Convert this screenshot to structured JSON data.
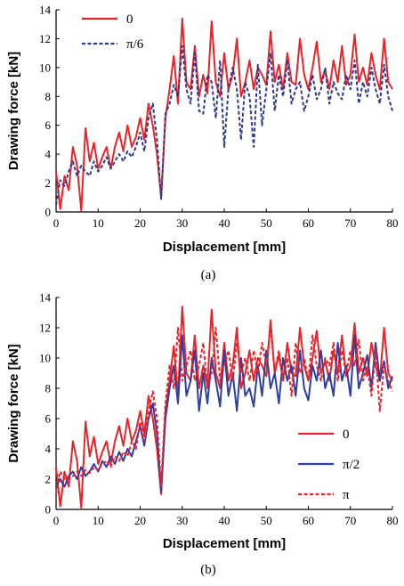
{
  "chart_data": [
    {
      "type": "line",
      "caption": "(a)",
      "xlabel": "Displacement  [mm]",
      "ylabel": "Drawing force [kN]",
      "xlim": [
        0,
        80
      ],
      "ylim": [
        0,
        14
      ],
      "xticks": [
        0,
        10,
        20,
        30,
        40,
        50,
        60,
        70,
        80
      ],
      "yticks": [
        0,
        2,
        4,
        6,
        8,
        10,
        12,
        14
      ],
      "grid": false,
      "legend_position": "top-left",
      "x": [
        0,
        1,
        2,
        3,
        4,
        5,
        6,
        7,
        8,
        9,
        10,
        11,
        12,
        13,
        14,
        15,
        16,
        17,
        18,
        19,
        20,
        21,
        22,
        23,
        24,
        25,
        26,
        27,
        28,
        29,
        30,
        31,
        32,
        33,
        34,
        35,
        36,
        37,
        38,
        39,
        40,
        41,
        42,
        43,
        44,
        45,
        46,
        47,
        48,
        49,
        50,
        51,
        52,
        53,
        54,
        55,
        56,
        57,
        58,
        59,
        60,
        61,
        62,
        63,
        64,
        65,
        66,
        67,
        68,
        69,
        70,
        71,
        72,
        73,
        74,
        75,
        76,
        77,
        78,
        79,
        80
      ],
      "series": [
        {
          "name": "0",
          "color": "#e8242b",
          "dash": "solid",
          "values": [
            2.8,
            0.2,
            2.5,
            1.5,
            4.5,
            3.2,
            0.1,
            5.8,
            3.5,
            4.8,
            3.0,
            3.8,
            4.5,
            3.0,
            4.5,
            5.5,
            4.2,
            6.0,
            4.5,
            5.2,
            6.5,
            5.0,
            7.5,
            6.0,
            4.0,
            1.0,
            6.5,
            8.5,
            10.8,
            7.5,
            13.4,
            9.0,
            8.5,
            11.5,
            8.0,
            9.5,
            8.2,
            13.2,
            9.0,
            8.0,
            11.0,
            8.5,
            9.5,
            12.0,
            8.0,
            9.0,
            10.5,
            8.5,
            10.0,
            9.5,
            8.8,
            12.5,
            9.0,
            10.2,
            8.5,
            11.0,
            9.0,
            8.8,
            12.0,
            9.5,
            8.5,
            10.0,
            11.8,
            9.0,
            9.8,
            8.5,
            10.5,
            9.0,
            11.5,
            8.8,
            9.5,
            12.3,
            9.0,
            10.0,
            8.8,
            11.0,
            9.5,
            8.5,
            12.0,
            9.0,
            8.5
          ]
        },
        {
          "name": "π/6",
          "color": "#2e3a8c",
          "dash": "dashed",
          "values": [
            0.5,
            2.2,
            1.8,
            2.8,
            3.5,
            2.5,
            3.2,
            2.8,
            2.5,
            3.5,
            2.8,
            3.2,
            3.8,
            3.0,
            3.5,
            4.0,
            3.5,
            4.2,
            3.8,
            4.5,
            5.5,
            4.2,
            6.5,
            7.5,
            5.0,
            0.9,
            6.8,
            7.5,
            8.8,
            8.0,
            11.5,
            8.5,
            7.5,
            11.0,
            7.0,
            6.8,
            9.5,
            9.0,
            6.5,
            10.5,
            4.5,
            8.5,
            10.0,
            8.5,
            5.0,
            9.0,
            8.0,
            4.5,
            10.2,
            6.0,
            8.5,
            11.0,
            7.0,
            9.5,
            8.0,
            10.5,
            7.5,
            8.5,
            9.0,
            7.0,
            8.0,
            9.5,
            7.8,
            8.5,
            10.0,
            7.5,
            9.0,
            8.2,
            7.8,
            9.5,
            8.5,
            10.5,
            7.5,
            9.0,
            8.0,
            10.0,
            8.5,
            7.5,
            10.2,
            8.0,
            7.0
          ]
        }
      ]
    },
    {
      "type": "line",
      "caption": "(b)",
      "xlabel": "Displacement  [mm]",
      "ylabel": "Drawing force [kN]",
      "xlim": [
        0,
        80
      ],
      "ylim": [
        0,
        14
      ],
      "xticks": [
        0,
        10,
        20,
        30,
        40,
        50,
        60,
        70,
        80
      ],
      "yticks": [
        0,
        2,
        4,
        6,
        8,
        10,
        12,
        14
      ],
      "grid": false,
      "legend_position": "bottom-right",
      "x": [
        0,
        1,
        2,
        3,
        4,
        5,
        6,
        7,
        8,
        9,
        10,
        11,
        12,
        13,
        14,
        15,
        16,
        17,
        18,
        19,
        20,
        21,
        22,
        23,
        24,
        25,
        26,
        27,
        28,
        29,
        30,
        31,
        32,
        33,
        34,
        35,
        36,
        37,
        38,
        39,
        40,
        41,
        42,
        43,
        44,
        45,
        46,
        47,
        48,
        49,
        50,
        51,
        52,
        53,
        54,
        55,
        56,
        57,
        58,
        59,
        60,
        61,
        62,
        63,
        64,
        65,
        66,
        67,
        68,
        69,
        70,
        71,
        72,
        73,
        74,
        75,
        76,
        77,
        78,
        79,
        80
      ],
      "series": [
        {
          "name": "0",
          "color": "#e8242b",
          "dash": "solid",
          "values": [
            2.8,
            0.2,
            2.5,
            1.5,
            4.5,
            3.2,
            0.1,
            5.8,
            3.5,
            4.8,
            3.0,
            3.8,
            4.5,
            3.0,
            4.5,
            5.5,
            4.2,
            6.0,
            4.5,
            5.2,
            6.5,
            5.0,
            7.5,
            6.0,
            4.0,
            1.0,
            6.5,
            8.5,
            10.8,
            7.5,
            13.4,
            9.0,
            8.5,
            11.5,
            8.0,
            9.5,
            8.2,
            13.2,
            9.0,
            8.0,
            11.0,
            8.5,
            9.5,
            12.0,
            8.0,
            9.0,
            10.5,
            8.5,
            10.0,
            9.5,
            8.8,
            12.5,
            9.0,
            10.2,
            8.5,
            11.0,
            9.0,
            8.8,
            12.0,
            9.5,
            8.5,
            10.0,
            11.8,
            9.0,
            9.8,
            8.5,
            10.5,
            9.0,
            11.5,
            8.8,
            9.5,
            12.3,
            9.0,
            10.0,
            8.8,
            11.0,
            9.5,
            8.5,
            12.0,
            9.0,
            8.5
          ]
        },
        {
          "name": "π/2",
          "color": "#2e3f9e",
          "dash": "solid",
          "values": [
            1.5,
            2.0,
            1.5,
            2.2,
            2.5,
            2.0,
            2.8,
            2.2,
            2.5,
            3.0,
            2.5,
            3.2,
            2.8,
            3.5,
            3.0,
            3.8,
            3.2,
            4.0,
            3.5,
            4.5,
            5.5,
            4.2,
            6.0,
            7.0,
            5.0,
            1.2,
            6.0,
            8.0,
            9.5,
            7.0,
            11.5,
            7.5,
            8.5,
            10.5,
            6.5,
            9.0,
            7.0,
            10.0,
            8.5,
            6.8,
            10.5,
            7.5,
            9.0,
            6.5,
            10.0,
            7.5,
            8.0,
            6.8,
            9.5,
            7.5,
            10.5,
            8.0,
            9.0,
            7.0,
            10.0,
            8.5,
            9.5,
            7.5,
            10.5,
            8.0,
            7.2,
            9.5,
            8.5,
            10.5,
            8.0,
            9.0,
            7.5,
            11.0,
            8.5,
            9.5,
            7.5,
            11.5,
            8.0,
            9.0,
            10.2,
            8.0,
            11.0,
            8.5,
            9.8,
            8.0,
            8.8
          ]
        },
        {
          "name": "π",
          "color": "#e8242b",
          "dash": "dashed",
          "values": [
            1.0,
            2.5,
            2.0,
            2.0,
            2.2,
            2.5,
            2.2,
            2.6,
            2.4,
            2.8,
            2.6,
            3.0,
            3.2,
            2.8,
            3.5,
            3.2,
            3.8,
            3.5,
            4.5,
            4.0,
            5.8,
            4.5,
            6.5,
            7.8,
            6.0,
            1.5,
            7.0,
            9.5,
            8.0,
            12.0,
            8.5,
            9.5,
            10.5,
            8.5,
            9.5,
            11.0,
            8.0,
            9.0,
            12.0,
            8.5,
            9.5,
            10.5,
            8.5,
            11.0,
            9.0,
            10.0,
            8.5,
            10.5,
            9.0,
            11.0,
            9.5,
            12.2,
            9.0,
            10.5,
            8.5,
            10.0,
            7.5,
            11.0,
            9.0,
            10.0,
            8.5,
            11.5,
            9.5,
            8.5,
            10.0,
            9.5,
            11.0,
            8.5,
            10.5,
            9.0,
            10.5,
            9.5,
            11.2,
            8.5,
            9.5,
            7.5,
            10.5,
            6.5,
            9.5,
            8.5,
            7.8
          ]
        }
      ]
    }
  ]
}
